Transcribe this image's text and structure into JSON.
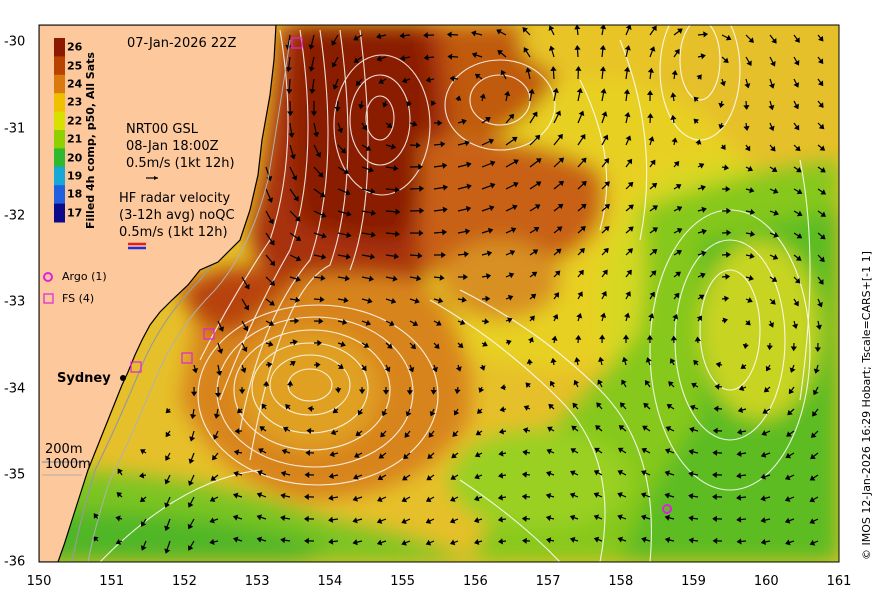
{
  "datetime": "07-Jan-2026 22Z",
  "colorbar": {
    "title": "Filled 4h comp, p50, All Sats",
    "ticks": [
      "26",
      "25",
      "24",
      "23",
      "22",
      "21",
      "20",
      "19",
      "18",
      "17"
    ],
    "colors": [
      "#8b1a00",
      "#b84300",
      "#d87a10",
      "#f0c000",
      "#d8e000",
      "#90d000",
      "#30b830",
      "#18a8d8",
      "#2060e0",
      "#0a0a8a"
    ]
  },
  "gsl": {
    "line1": "NRT00 GSL",
    "line2": "08-Jan 18:00Z",
    "line3": "0.5m/s (1kt 12h)"
  },
  "hf": {
    "line1": "HF radar velocity",
    "line2": "(3-12h avg) noQC",
    "line3": "0.5m/s (1kt 12h)"
  },
  "legend": {
    "argo": "Argo (1)",
    "fs": "FS (4)"
  },
  "place": "Sydney",
  "bathy": {
    "l200": "200m",
    "l1000": "1000m"
  },
  "credit": "© IMOS 12-Jan-2026 16:29 Hobart; Tscale=CARS+[-1 1]",
  "axes": {
    "x_ticks": [
      "150",
      "151",
      "152",
      "153",
      "154",
      "155",
      "156",
      "157",
      "158",
      "159",
      "160",
      "161"
    ],
    "y_ticks": [
      "-30",
      "-31",
      "-32",
      "-33",
      "-34",
      "-35",
      "-36"
    ],
    "xlim": [
      150,
      161
    ],
    "ylim": [
      -36,
      -29.8
    ]
  },
  "colors": {
    "land": "#fcc89c",
    "ocean_bg": "#e8c028",
    "contour": "#ffffff",
    "coast": "#000000"
  }
}
